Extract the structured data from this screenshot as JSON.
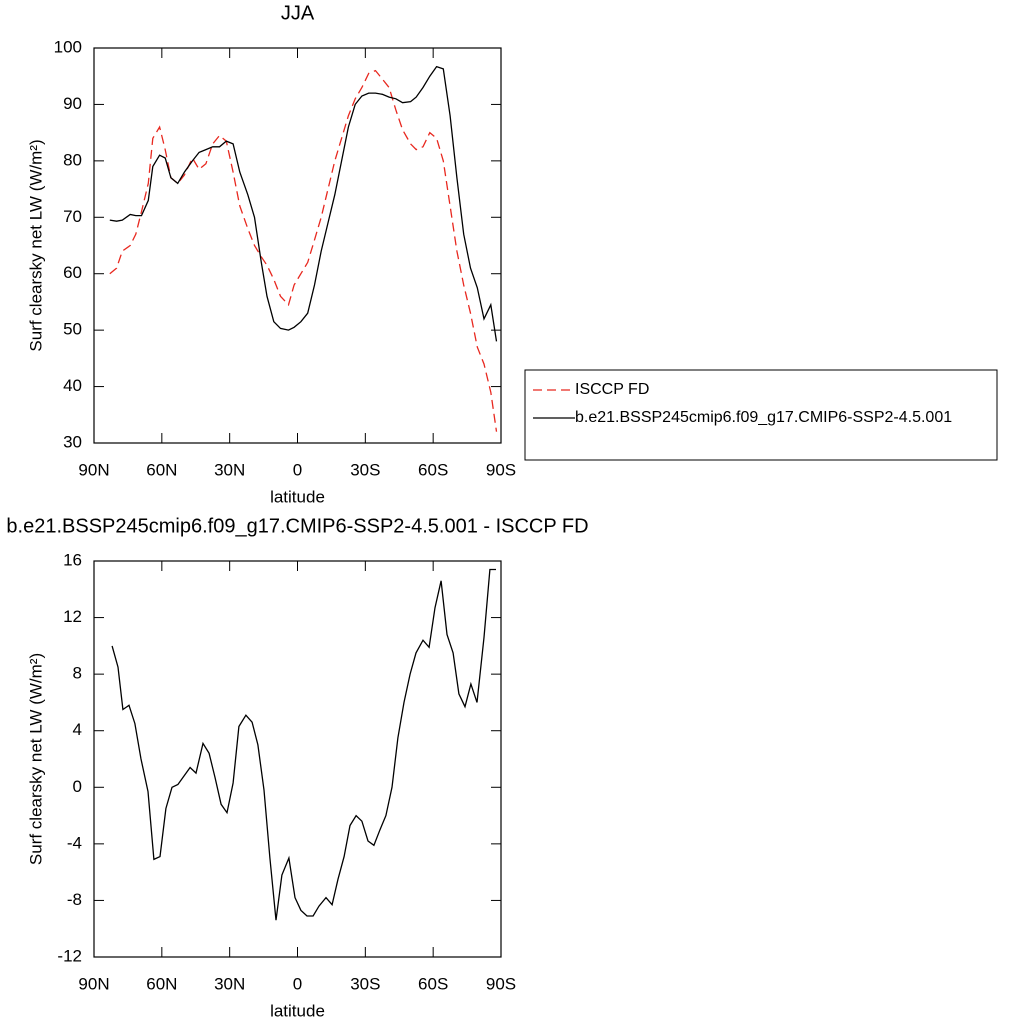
{
  "chart_data": [
    {
      "type": "line",
      "title": "JJA",
      "xlabel": "latitude",
      "ylabel": "Surf clearsky net LW (W/m²)",
      "xlim": [
        90,
        -90
      ],
      "xticks": [
        {
          "value": 90,
          "label": "90N"
        },
        {
          "value": 60,
          "label": "60N"
        },
        {
          "value": 30,
          "label": "30N"
        },
        0,
        {
          "value": -30,
          "label": "30S"
        },
        {
          "value": -60,
          "label": "60S"
        },
        {
          "value": -90,
          "label": "90S"
        }
      ],
      "ylim": [
        30,
        100
      ],
      "yticks": [
        30,
        40,
        50,
        60,
        70,
        80,
        90,
        100
      ],
      "legend": "outside-right",
      "x": [
        83,
        80,
        77.5,
        74,
        71.5,
        69,
        66,
        64,
        61,
        58.5,
        56,
        53,
        50,
        46.5,
        43.5,
        40.5,
        37.5,
        34.5,
        31.5,
        28.5,
        25.5,
        22,
        19,
        16,
        13.5,
        10.5,
        7.5,
        4,
        1.5,
        -1.5,
        -4.5,
        -7.5,
        -10.5,
        -13.5,
        -16.5,
        -19.5,
        -22.5,
        -25.5,
        -28.5,
        -31.5,
        -34.5,
        -37.5,
        -40.5,
        -43.5,
        -46.5,
        -50,
        -52.5,
        -55.5,
        -58.5,
        -61.5,
        -64.5,
        -67.5,
        -70.5,
        -73.5,
        -76.5,
        -79.5,
        -82.5,
        -85.5,
        -88
      ],
      "series": [
        {
          "name": "ISCCP FD",
          "color": "#e8281f",
          "line_style": "dashed",
          "values": [
            60,
            61,
            64,
            65,
            67,
            71,
            76,
            84,
            86,
            82,
            77,
            76,
            77.5,
            80.5,
            78.5,
            79.5,
            83,
            84.5,
            83.5,
            78,
            72,
            68,
            65,
            63,
            61.5,
            59,
            56,
            54.5,
            58,
            60,
            62,
            66,
            70,
            75,
            80,
            84,
            88,
            91,
            93,
            95.5,
            96,
            94.5,
            93,
            89,
            85.5,
            83,
            82,
            82.5,
            85,
            84,
            80,
            72,
            64,
            58,
            53,
            47,
            44,
            39,
            32
          ]
        },
        {
          "name": "b.e21.BSSP245cmip6.f09_g17.CMIP6-SSP2-4.5.001",
          "color": "#000000",
          "line_style": "solid",
          "values": [
            69.5,
            69.3,
            69.5,
            70.5,
            70.3,
            70.3,
            73,
            79,
            81,
            80.5,
            77,
            76,
            78,
            80,
            81.5,
            82,
            82.5,
            82.5,
            83.5,
            83,
            78,
            74,
            70,
            62,
            56,
            51.5,
            50.3,
            50,
            50.5,
            51.5,
            53,
            58,
            64,
            69,
            74,
            80,
            86,
            90,
            91.5,
            92,
            92,
            91.8,
            91.3,
            91,
            90.3,
            90.5,
            91.3,
            93,
            95,
            96.7,
            96.3,
            88,
            77,
            67,
            61,
            57.5,
            52,
            54.5,
            48
          ]
        }
      ]
    },
    {
      "type": "line",
      "title": "b.e21.BSSP245cmip6.f09_g17.CMIP6-SSP2-4.5.001 - ISCCP FD",
      "xlabel": "latitude",
      "ylabel": "Surf clearsky net LW (W/m²)",
      "xlim": [
        90,
        -90
      ],
      "xticks": [
        {
          "value": 90,
          "label": "90N"
        },
        {
          "value": 60,
          "label": "60N"
        },
        {
          "value": 30,
          "label": "30N"
        },
        0,
        {
          "value": -30,
          "label": "30S"
        },
        {
          "value": -60,
          "label": "60S"
        },
        {
          "value": -90,
          "label": "90S"
        }
      ],
      "ylim": [
        -12,
        16
      ],
      "yticks": [
        -12,
        -8,
        -4,
        0,
        4,
        8,
        12,
        16
      ],
      "x": [
        82,
        79.4,
        77.2,
        74.5,
        71.9,
        69.2,
        66.1,
        63.5,
        60.8,
        58.2,
        55.5,
        52.9,
        50.2,
        47.5,
        44.9,
        41.8,
        39.1,
        36.5,
        33.8,
        31.2,
        28.5,
        25.9,
        22.8,
        20.1,
        17.5,
        14.8,
        12.2,
        9.5,
        6.9,
        3.8,
        1.1,
        -1.5,
        -4.2,
        -6.9,
        -9.5,
        -12.6,
        -15.3,
        -17.9,
        -20.6,
        -23.2,
        -25.9,
        -28.5,
        -31.2,
        -33.8,
        -36.5,
        -39.1,
        -41.8,
        -44.4,
        -47.1,
        -49.8,
        -52.4,
        -55.5,
        -58.2,
        -60.8,
        -63.5,
        -66.1,
        -68.8,
        -71.4,
        -74.1,
        -76.7,
        -79.4,
        -82.5,
        -85.1,
        -87.8
      ],
      "series": [
        {
          "color": "#000000",
          "line_style": "solid",
          "values": [
            10,
            8.5,
            5.5,
            5.8,
            4.5,
            2,
            -0.3,
            -5.1,
            -4.9,
            -1.5,
            0,
            0.2,
            0.8,
            1.4,
            1,
            3.1,
            2.4,
            0.7,
            -1.2,
            -1.8,
            0.3,
            4.3,
            5.1,
            4.6,
            3,
            -0.2,
            -5,
            -9.4,
            -6.2,
            -5,
            -7.8,
            -8.7,
            -9.1,
            -9.1,
            -8.4,
            -7.8,
            -8.3,
            -6.5,
            -4.9,
            -2.7,
            -2,
            -2.4,
            -3.8,
            -4.1,
            -3,
            -2,
            0,
            3.5,
            6,
            8,
            9.5,
            10.4,
            9.9,
            12.7,
            14.6,
            10.8,
            9.5,
            6.6,
            5.7,
            7.3,
            6,
            10.6,
            15.4,
            15.4
          ]
        }
      ]
    }
  ]
}
